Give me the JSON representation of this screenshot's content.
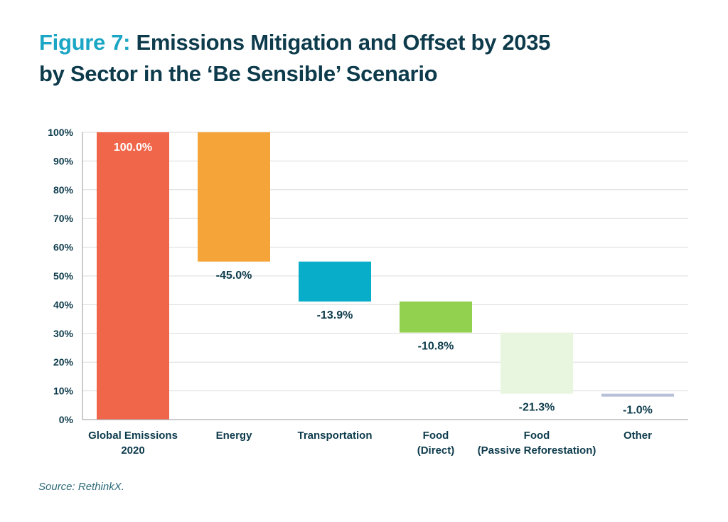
{
  "title": {
    "figure_label": "Figure 7:",
    "line1_rest": " Emissions Mitigation and Offset by 2035",
    "line2": "by Sector in the ‘Be Sensible’ Scenario"
  },
  "source": "Source: RethinkX.",
  "chart_data": {
    "type": "waterfall",
    "title": "Emissions Mitigation and Offset by 2035 by Sector in the ‘Be Sensible’ Scenario",
    "ylim": [
      0,
      100
    ],
    "yticks": [
      0,
      10,
      20,
      30,
      40,
      50,
      60,
      70,
      80,
      90,
      100
    ],
    "ytick_labels": [
      "0%",
      "10%",
      "20%",
      "30%",
      "40%",
      "50%",
      "60%",
      "70%",
      "80%",
      "90%",
      "100%"
    ],
    "grid": true,
    "bars": [
      {
        "category": [
          "Global Emissions",
          "2020"
        ],
        "start": 0,
        "end": 100,
        "value": 100.0,
        "label": "100.0%",
        "color": "#f0664a",
        "label_color": "#ffffff",
        "label_position": "inside-top"
      },
      {
        "category": [
          "Energy"
        ],
        "start": 55,
        "end": 100,
        "value": -45.0,
        "label": "-45.0%",
        "color": "#f5a43a",
        "label_color": "#0d3b4c",
        "label_position": "below"
      },
      {
        "category": [
          "Transportation"
        ],
        "start": 41.1,
        "end": 55,
        "value": -13.9,
        "label": "-13.9%",
        "color": "#08adc9",
        "label_color": "#0d3b4c",
        "label_position": "below"
      },
      {
        "category": [
          "Food",
          "(Direct)"
        ],
        "start": 30.3,
        "end": 41.1,
        "value": -10.8,
        "label": "-10.8%",
        "color": "#92d050",
        "label_color": "#0d3b4c",
        "label_position": "below"
      },
      {
        "category": [
          "Food",
          "(Passive Reforestation)"
        ],
        "start": 9.0,
        "end": 30.3,
        "value": -21.3,
        "label": "-21.3%",
        "color": "#e9f6df",
        "label_color": "#0d3b4c",
        "label_position": "below"
      },
      {
        "category": [
          "Other"
        ],
        "start": 8.0,
        "end": 9.0,
        "value": -1.0,
        "label": "-1.0%",
        "color": "#b8bfd8",
        "label_color": "#0d3b4c",
        "label_position": "below"
      }
    ]
  }
}
